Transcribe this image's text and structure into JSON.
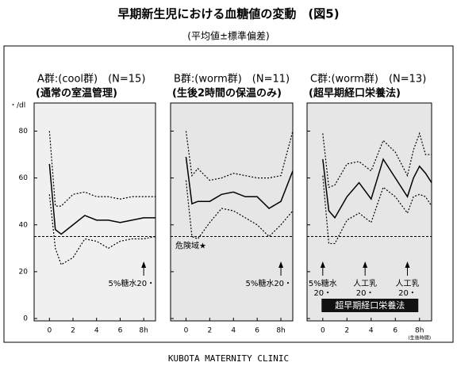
{
  "title": "早期新生児における血糖値の変動　(図5)",
  "subtitle": "(平均値±標準偏差)",
  "footer": "KUBOTA MATERNITY CLINIC",
  "chart_data": [
    {
      "type": "line",
      "title": "A群:(cool群)　(N=15)",
      "subtitle": "(通常の室温管理)",
      "y_unit": "・/dl",
      "y_tick_labels": true,
      "x": [
        0,
        0.5,
        1,
        2,
        3,
        4,
        5,
        6,
        7,
        8,
        9
      ],
      "series": [
        {
          "style": "solid",
          "color": "#000000",
          "values": [
            66,
            38,
            36,
            40,
            44,
            42,
            42,
            41,
            42,
            43,
            43
          ]
        },
        {
          "style": "dotted",
          "color": "#000000",
          "values": [
            80,
            48,
            48,
            53,
            54,
            52,
            52,
            51,
            52,
            52,
            52
          ]
        },
        {
          "style": "dotted",
          "color": "#000000",
          "values": [
            53,
            30,
            23,
            26,
            34,
            33,
            30,
            33,
            34,
            34,
            35
          ]
        }
      ],
      "threshold": 35,
      "xlim": [
        -1.3,
        9
      ],
      "ylim": [
        -1,
        92
      ],
      "xticks": [
        0,
        2,
        4,
        6,
        {
          "value": 8,
          "label": "8h"
        }
      ],
      "yticks": [
        0,
        20,
        40,
        60,
        80
      ],
      "annotations": [
        {
          "text": [
            "5%糖水20・"
          ],
          "x": 8,
          "arrow": true
        }
      ]
    },
    {
      "type": "line",
      "title": "B群:(worm群)　(N=11)",
      "subtitle": "(生後2時間の保温のみ)",
      "y_tick_labels": false,
      "x": [
        0,
        0.5,
        1,
        2,
        3,
        4,
        5,
        6,
        7,
        8,
        9
      ],
      "series": [
        {
          "style": "solid",
          "color": "#000000",
          "values": [
            69,
            49,
            50,
            50,
            53,
            54,
            52,
            52,
            47,
            50,
            63
          ]
        },
        {
          "style": "dotted",
          "color": "#000000",
          "values": [
            80,
            61,
            64,
            59,
            60,
            62,
            61,
            60,
            60,
            61,
            80
          ]
        },
        {
          "style": "dotted",
          "color": "#000000",
          "values": [
            59,
            35,
            34,
            41,
            47,
            46,
            43,
            40,
            35,
            40,
            46
          ]
        }
      ],
      "threshold": 35,
      "xlim": [
        -1.3,
        9
      ],
      "ylim": [
        -1,
        92
      ],
      "xticks": [
        0,
        2,
        4,
        6,
        {
          "value": 8,
          "label": "8h"
        }
      ],
      "yticks": [
        0,
        20,
        40,
        60,
        80
      ],
      "annotations": [
        {
          "text": [
            "危険域★"
          ],
          "x": 1.5,
          "arrow": false
        },
        {
          "text": [
            "5%糖水20・"
          ],
          "x": 8,
          "arrow": true
        }
      ]
    },
    {
      "type": "line",
      "title": "C群:(worm群)　(N=13)",
      "subtitle": "(超早期経口栄養法)",
      "y_tick_labels": false,
      "x_label": "(生後時間)",
      "box_label": "超早期経口栄養法",
      "x": [
        0,
        0.5,
        1,
        2,
        3,
        4,
        5,
        6,
        7,
        7.5,
        8,
        8.5,
        9
      ],
      "series": [
        {
          "style": "solid",
          "color": "#000000",
          "values": [
            68,
            46,
            43,
            52,
            58,
            51,
            68,
            60,
            52,
            60,
            65,
            62,
            58
          ]
        },
        {
          "style": "dotted",
          "color": "#000000",
          "values": [
            79,
            56,
            57,
            66,
            67,
            63,
            76,
            71,
            61,
            72,
            79,
            70,
            70
          ]
        },
        {
          "style": "dotted",
          "color": "#000000",
          "values": [
            61,
            32,
            32,
            42,
            45,
            41,
            56,
            52,
            45,
            52,
            53,
            52,
            48
          ]
        }
      ],
      "threshold": 35,
      "xlim": [
        -1.3,
        9
      ],
      "ylim": [
        -1,
        92
      ],
      "xticks": [
        0,
        2,
        4,
        6,
        {
          "value": 8,
          "label": "8h"
        }
      ],
      "yticks": [
        0,
        20,
        40,
        60,
        80
      ],
      "annotations": [
        {
          "text": [
            "5%糖水",
            "20・"
          ],
          "x": 0,
          "arrow": true
        },
        {
          "text": [
            "人工乳",
            "20・"
          ],
          "x": 3.5,
          "arrow": true
        },
        {
          "text": [
            "人工乳",
            "20・"
          ],
          "x": 7,
          "arrow": true
        }
      ]
    }
  ]
}
